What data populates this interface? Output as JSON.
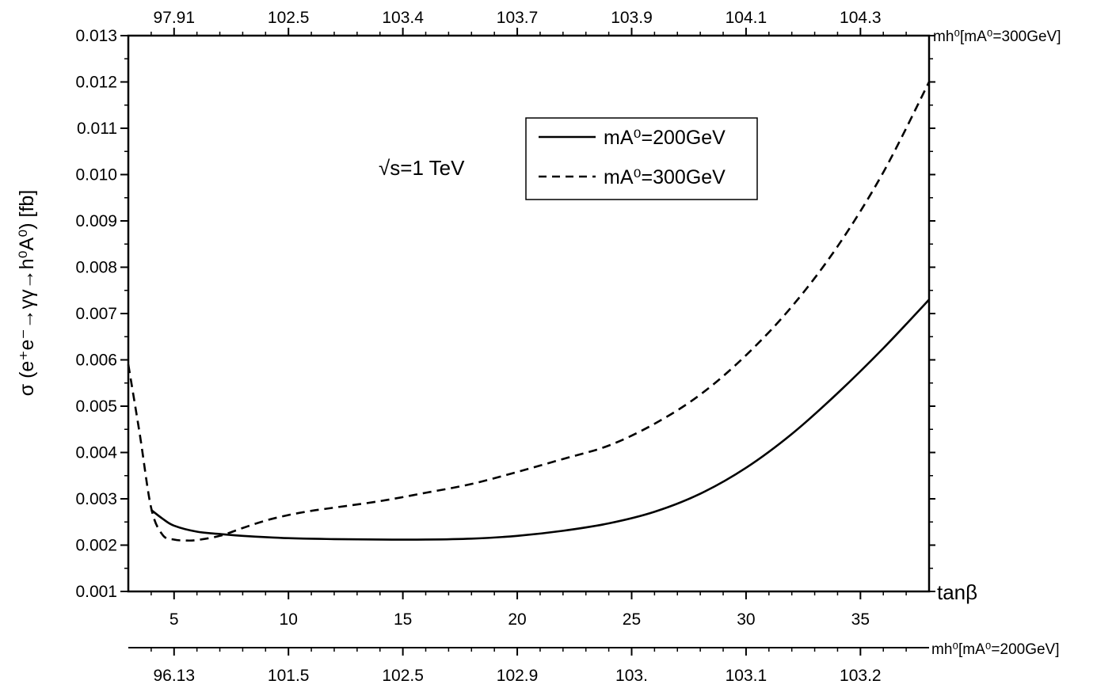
{
  "chart_data": {
    "type": "line",
    "xlabel": "tanβ",
    "ylabel": "σ (e⁺e⁻→γγ→h⁰A⁰) [fb]",
    "annotation": "√s=1 TeV",
    "xlim": [
      3,
      38
    ],
    "ylim": [
      0.001,
      0.013
    ],
    "x_ticks": [
      5,
      10,
      15,
      20,
      25,
      30,
      35
    ],
    "y_ticks": [
      "0.001",
      "0.002",
      "0.003",
      "0.004",
      "0.005",
      "0.006",
      "0.007",
      "0.008",
      "0.009",
      "0.010",
      "0.011",
      "0.012",
      "0.013"
    ],
    "top_axis": {
      "label": "m_h0[m_A0=300GeV]",
      "label_display": "mh⁰[mA⁰=300GeV]",
      "tick_labels": [
        "97.91",
        "102.5",
        "103.4",
        "103.7",
        "103.9",
        "104.1",
        "104.3"
      ],
      "tick_positions": [
        5,
        10,
        15,
        20,
        25,
        30,
        35
      ]
    },
    "bottom_extra_axis": {
      "label": "m_h0[m_A0=200GeV]",
      "label_display": "mh⁰[mA⁰=200GeV]",
      "tick_labels": [
        "96.13",
        "101.5",
        "102.5",
        "102.9",
        "103.",
        "103.1",
        "103.2"
      ],
      "tick_positions": [
        5,
        10,
        15,
        20,
        25,
        30,
        35
      ]
    },
    "legend_position": "upper-center",
    "series": [
      {
        "name": "mA0=200GeV",
        "legend_label": "mA⁰=200GeV",
        "style": "solid",
        "x": [
          4,
          4.5,
          5,
          6,
          7,
          8,
          10,
          12,
          14,
          16,
          18,
          20,
          22,
          24,
          26,
          28,
          30,
          32,
          34,
          36,
          38
        ],
        "y": [
          0.00276,
          0.00257,
          0.00242,
          0.00229,
          0.00224,
          0.0022,
          0.00215,
          0.00213,
          0.00212,
          0.00212,
          0.00214,
          0.0022,
          0.00231,
          0.00247,
          0.00272,
          0.00311,
          0.00367,
          0.0044,
          0.00528,
          0.00625,
          0.0073
        ]
      },
      {
        "name": "mA0=300GeV",
        "legend_label": "mA⁰=300GeV",
        "style": "dashed",
        "x": [
          3,
          3.5,
          4,
          4.5,
          5,
          5.5,
          6,
          7,
          8,
          9,
          10,
          11,
          12,
          14,
          16,
          18,
          20,
          22,
          24,
          26,
          28,
          30,
          32,
          34,
          36,
          38
        ],
        "y": [
          0.0059,
          0.0044,
          0.0028,
          0.00222,
          0.00212,
          0.0021,
          0.00211,
          0.0022,
          0.00237,
          0.00253,
          0.00265,
          0.00274,
          0.00281,
          0.00295,
          0.00313,
          0.00332,
          0.00358,
          0.00386,
          0.00415,
          0.00462,
          0.00525,
          0.0061,
          0.00715,
          0.00845,
          0.01005,
          0.012
        ]
      }
    ]
  }
}
